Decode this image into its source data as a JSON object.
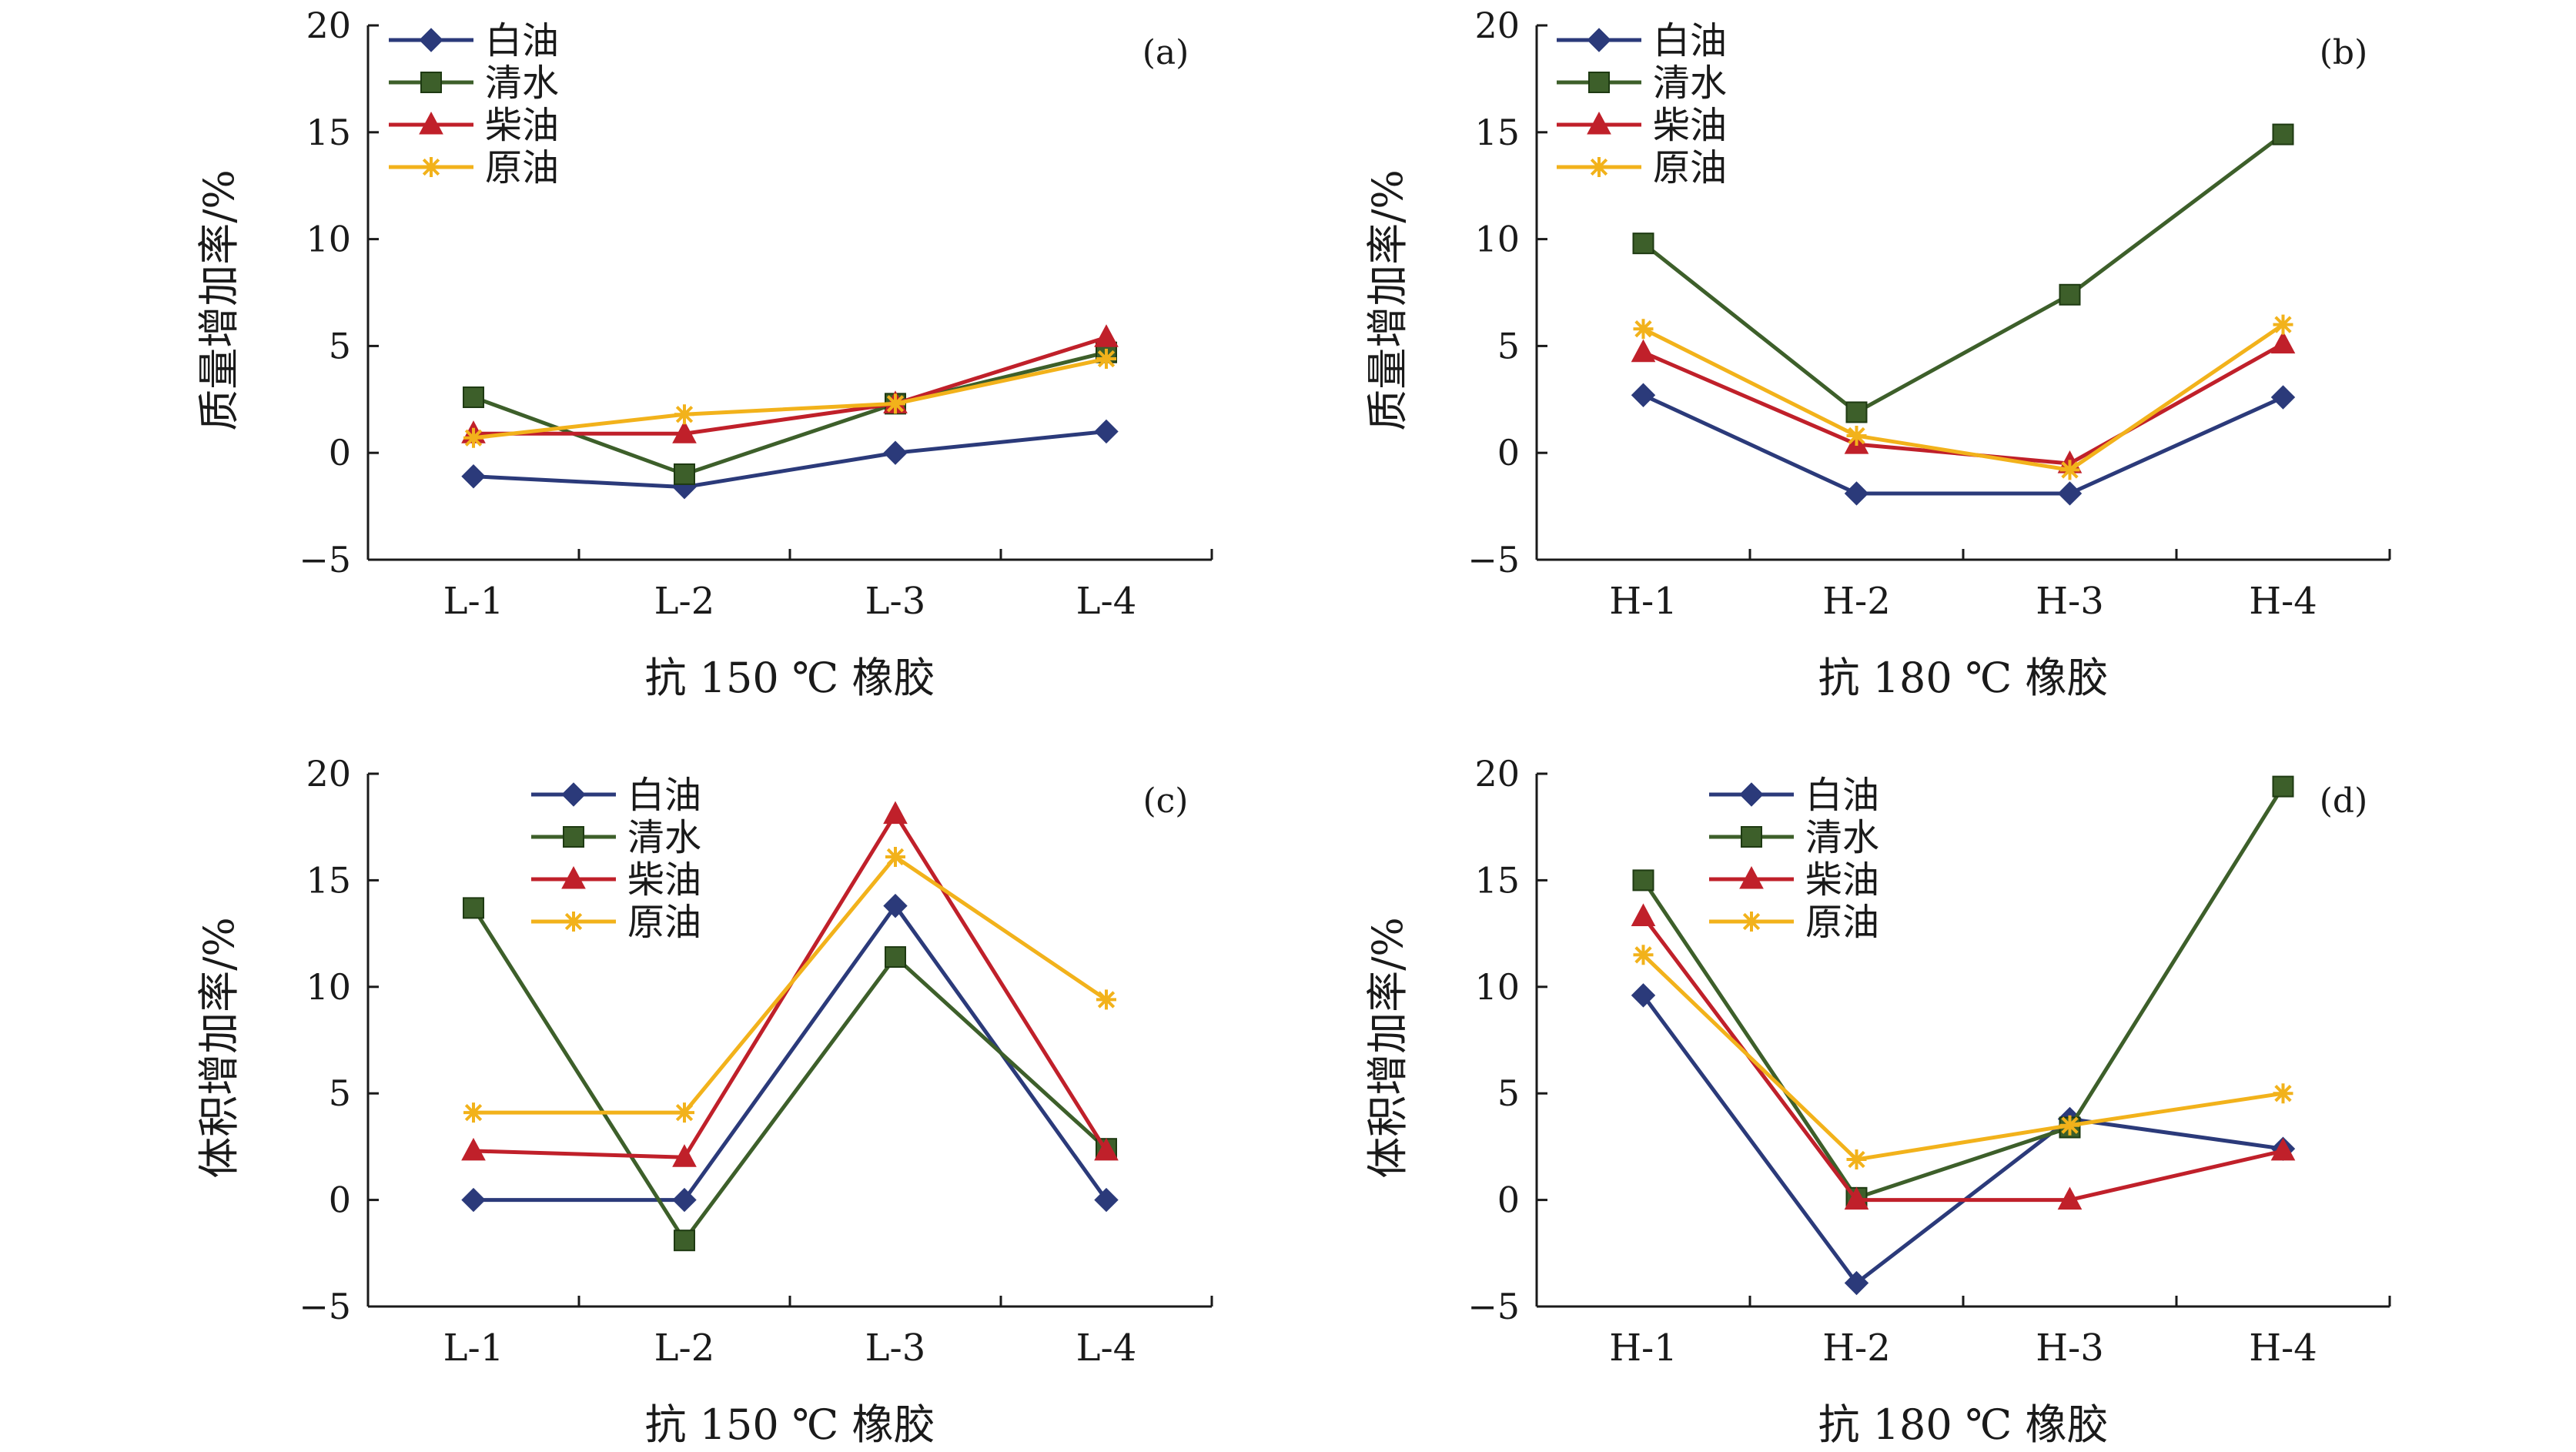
{
  "chart_data": [
    {
      "type": "line",
      "panel_label": "(a)",
      "xlabel": "抗 150 ℃ 橡胶",
      "ylabel": "质量增加率/%",
      "categories": [
        "L-1",
        "L-2",
        "L-3",
        "L-4"
      ],
      "ylim": [
        -5,
        20
      ],
      "yticks": [
        "20",
        "15",
        "10",
        "5",
        "0",
        "−5"
      ],
      "legend_position": "top-left",
      "series": [
        {
          "name": "白油",
          "values": [
            -1.1,
            -1.6,
            0,
            1.0
          ]
        },
        {
          "name": "清水",
          "values": [
            2.6,
            -1.0,
            2.3,
            4.7
          ]
        },
        {
          "name": "柴油",
          "values": [
            0.9,
            0.9,
            2.3,
            5.4
          ]
        },
        {
          "name": "原油",
          "values": [
            0.7,
            1.8,
            2.3,
            4.4
          ]
        }
      ]
    },
    {
      "type": "line",
      "panel_label": "(b)",
      "xlabel": "抗 180 ℃ 橡胶",
      "ylabel": "质量增加率/%",
      "categories": [
        "H-1",
        "H-2",
        "H-3",
        "H-4"
      ],
      "ylim": [
        -5,
        20
      ],
      "yticks": [
        "20",
        "15",
        "10",
        "5",
        "0",
        "−5"
      ],
      "legend_position": "top-left",
      "series": [
        {
          "name": "白油",
          "values": [
            2.7,
            -1.9,
            -1.9,
            2.6
          ]
        },
        {
          "name": "清水",
          "values": [
            9.8,
            1.9,
            7.4,
            14.9
          ]
        },
        {
          "name": "柴油",
          "values": [
            4.7,
            0.4,
            -0.5,
            5.1
          ]
        },
        {
          "name": "原油",
          "values": [
            5.8,
            0.8,
            -0.8,
            6.0
          ]
        }
      ]
    },
    {
      "type": "line",
      "panel_label": "(c)",
      "xlabel": "抗 150 ℃ 橡胶",
      "ylabel": "体积增加率/%",
      "categories": [
        "L-1",
        "L-2",
        "L-3",
        "L-4"
      ],
      "ylim": [
        -5,
        20
      ],
      "yticks": [
        "20",
        "15",
        "10",
        "5",
        "0",
        "−5"
      ],
      "legend_position": "top-center",
      "series": [
        {
          "name": "白油",
          "values": [
            0,
            0,
            13.8,
            0
          ]
        },
        {
          "name": "清水",
          "values": [
            13.7,
            -1.9,
            11.4,
            2.4
          ]
        },
        {
          "name": "柴油",
          "values": [
            2.3,
            2.0,
            18.1,
            2.3
          ]
        },
        {
          "name": "原油",
          "values": [
            4.1,
            4.1,
            16.1,
            9.4
          ]
        }
      ]
    },
    {
      "type": "line",
      "panel_label": "(d)",
      "xlabel": "抗 180 ℃ 橡胶",
      "ylabel": "体积增加率/%",
      "categories": [
        "H-1",
        "H-2",
        "H-3",
        "H-4"
      ],
      "ylim": [
        -5,
        20
      ],
      "yticks": [
        "20",
        "15",
        "10",
        "5",
        "0",
        "−5"
      ],
      "legend_position": "top-center",
      "series": [
        {
          "name": "白油",
          "values": [
            9.6,
            -3.9,
            3.8,
            2.4
          ]
        },
        {
          "name": "清水",
          "values": [
            15.0,
            0.1,
            3.4,
            19.4
          ]
        },
        {
          "name": "柴油",
          "values": [
            13.3,
            0,
            0,
            2.3
          ]
        },
        {
          "name": "原油",
          "values": [
            11.5,
            1.9,
            3.5,
            5.0
          ]
        }
      ]
    }
  ],
  "series_styles": [
    {
      "color": "#2b3a7a",
      "marker": "diamond"
    },
    {
      "color": "#3d5f2a",
      "marker": "square"
    },
    {
      "color": "#c0202a",
      "marker": "triangle"
    },
    {
      "color": "#f2b21b",
      "marker": "asterisk"
    }
  ]
}
